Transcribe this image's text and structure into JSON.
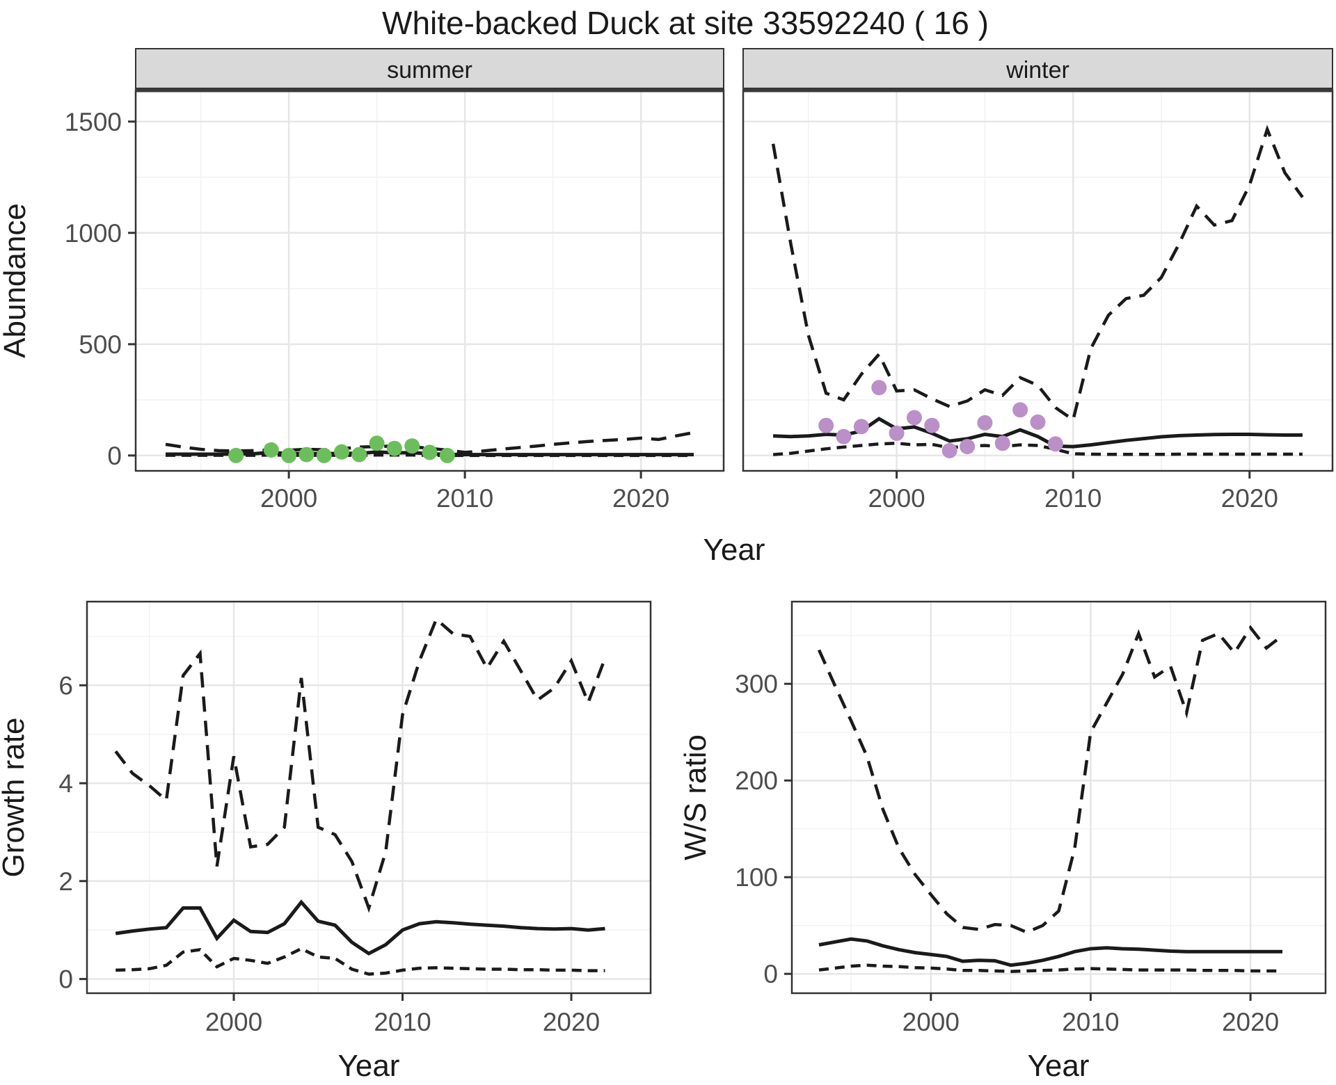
{
  "colors": {
    "point_summer": "#6CBE5C",
    "point_winter": "#BB8FC7",
    "line": "#1A1A1A",
    "strip_bg": "#D9D9D9",
    "strip_text": "#1A1A1A",
    "grid_major": "#E6E6E6",
    "grid_minor": "#F2F2F2",
    "axis_text": "#4D4D4D",
    "panel_border": "#333333",
    "strip_underline": "#3A3A3A"
  },
  "chart_data": {
    "type": "line",
    "title": "White-backed Duck at site 33592240 ( 16 )",
    "xlabel": "Year",
    "xlim": [
      1991.3,
      2024.7
    ],
    "x_ticks": [
      2000,
      2010,
      2020
    ],
    "grid": true,
    "legend_position": "none",
    "panels": [
      {
        "id": "abundance_summer",
        "strip_label": "summer",
        "ylabel": "Abundance",
        "xlabel": "Year",
        "ylim": [
          -69,
          1640
        ],
        "yticks": [
          0,
          500,
          1000,
          1500
        ],
        "show_yticklabels": true,
        "lines": [
          {
            "name": "lower_95",
            "dash": "short",
            "year_start": 1993,
            "values": [
              1,
              1,
              1,
              1,
              1,
              1,
              2,
              1,
              1,
              1,
              1,
              1,
              2,
              2,
              2,
              1,
              0,
              0,
              0,
              0,
              0,
              0,
              0,
              0,
              0,
              0,
              0,
              0,
              0,
              0,
              0
            ]
          },
          {
            "name": "upper_95",
            "dash": "long",
            "year_start": 1993,
            "values": [
              50,
              38,
              28,
              22,
              20,
              22,
              25,
              24,
              28,
              26,
              30,
              38,
              40,
              43,
              40,
              32,
              24,
              14,
              20,
              28,
              35,
              42,
              50,
              57,
              63,
              68,
              72,
              78,
              72,
              88,
              103
            ]
          },
          {
            "name": "median",
            "dash": "solid",
            "year_start": 1993,
            "values": [
              6,
              6,
              6,
              6,
              7,
              8,
              14,
              8,
              9,
              8,
              10,
              9,
              16,
              12,
              13,
              8,
              5,
              4,
              4,
              4,
              4,
              4,
              4,
              4,
              4,
              4,
              4,
              4,
              4,
              4,
              4
            ]
          }
        ],
        "points": {
          "name": "observed_summer_counts",
          "color": "#6CBE5C",
          "years": [
            1997,
            1999,
            2000,
            2001,
            2002,
            2003,
            2004,
            2005,
            2006,
            2007,
            2008,
            2009
          ],
          "values": [
            0,
            25,
            0,
            4,
            0,
            16,
            4,
            55,
            32,
            43,
            14,
            0
          ]
        }
      },
      {
        "id": "abundance_winter",
        "strip_label": "winter",
        "ylabel": "Abundance",
        "xlabel": "Year",
        "ylim": [
          -69,
          1640
        ],
        "yticks": [
          0,
          500,
          1000,
          1500
        ],
        "show_yticklabels": false,
        "lines": [
          {
            "name": "lower_95",
            "dash": "short",
            "year_start": 1993,
            "values": [
              4,
              10,
              20,
              30,
              38,
              45,
              52,
              55,
              48,
              50,
              35,
              42,
              45,
              40,
              48,
              45,
              28,
              8,
              6,
              5,
              5,
              5,
              5,
              6,
              6,
              6,
              6,
              6,
              6,
              6,
              6
            ]
          },
          {
            "name": "upper_95",
            "dash": "long",
            "year_start": 1993,
            "values": [
              1400,
              950,
              540,
              280,
              250,
              365,
              455,
              290,
              295,
              255,
              220,
              245,
              295,
              270,
              350,
              315,
              215,
              160,
              480,
              630,
              705,
              720,
              800,
              950,
              1120,
              1035,
              1055,
              1215,
              1465,
              1270,
              1160
            ]
          },
          {
            "name": "median",
            "dash": "solid",
            "year_start": 1993,
            "values": [
              88,
              85,
              88,
              95,
              92,
              110,
              165,
              120,
              128,
              100,
              65,
              75,
              95,
              85,
              115,
              85,
              42,
              40,
              48,
              58,
              68,
              76,
              84,
              89,
              92,
              94,
              95,
              95,
              93,
              92,
              92
            ]
          }
        ],
        "points": {
          "name": "observed_winter_counts",
          "color": "#BB8FC7",
          "years": [
            1996,
            1997,
            1998,
            1999,
            2000,
            2001,
            2002,
            2003,
            2004,
            2005,
            2006,
            2007,
            2008,
            2009
          ],
          "values": [
            135,
            85,
            130,
            305,
            100,
            170,
            135,
            22,
            40,
            147,
            55,
            205,
            150,
            52
          ]
        }
      },
      {
        "id": "growth_rate",
        "strip_label": null,
        "ylabel": "Growth rate",
        "xlabel": "Year",
        "ylim": [
          -0.29,
          7.71
        ],
        "yticks": [
          0,
          2,
          4,
          6
        ],
        "show_yticklabels": true,
        "lines": [
          {
            "name": "lower_95",
            "dash": "short",
            "year_start": 1993,
            "values": [
              0.18,
              0.19,
              0.21,
              0.28,
              0.55,
              0.6,
              0.25,
              0.42,
              0.38,
              0.32,
              0.45,
              0.62,
              0.45,
              0.42,
              0.2,
              0.1,
              0.12,
              0.18,
              0.22,
              0.23,
              0.22,
              0.21,
              0.2,
              0.2,
              0.19,
              0.19,
              0.18,
              0.18,
              0.17,
              0.17
            ]
          },
          {
            "name": "upper_95",
            "dash": "long",
            "year_start": 1993,
            "values": [
              4.65,
              4.2,
              3.95,
              3.65,
              6.2,
              6.65,
              2.3,
              4.55,
              2.7,
              2.75,
              3.1,
              6.15,
              3.1,
              2.95,
              2.4,
              1.45,
              2.6,
              5.4,
              6.5,
              7.35,
              7.05,
              7.0,
              6.35,
              6.9,
              6.3,
              5.7,
              5.95,
              6.5,
              5.65,
              6.55
            ]
          },
          {
            "name": "median",
            "dash": "solid",
            "year_start": 1993,
            "values": [
              0.93,
              0.98,
              1.02,
              1.05,
              1.45,
              1.45,
              0.83,
              1.2,
              0.97,
              0.95,
              1.13,
              1.57,
              1.18,
              1.1,
              0.75,
              0.52,
              0.7,
              1.0,
              1.13,
              1.17,
              1.15,
              1.12,
              1.1,
              1.08,
              1.05,
              1.03,
              1.02,
              1.03,
              1.0,
              1.03
            ]
          }
        ],
        "points": null
      },
      {
        "id": "ws_ratio",
        "strip_label": null,
        "ylabel": "W/S ratio",
        "xlabel": "Year",
        "ylim": [
          -20,
          385
        ],
        "yticks": [
          0,
          100,
          200,
          300
        ],
        "show_yticklabels": true,
        "lines": [
          {
            "name": "lower_95",
            "dash": "short",
            "year_start": 1993,
            "values": [
              4,
              6,
              8,
              9,
              8,
              7.5,
              6.5,
              6,
              5,
              3.5,
              3.5,
              3,
              2.5,
              3,
              3.5,
              4,
              5,
              5.5,
              5,
              4.5,
              4,
              4,
              4,
              4,
              3.5,
              3.5,
              3.5,
              3,
              3,
              3
            ]
          },
          {
            "name": "upper_95",
            "dash": "long",
            "year_start": 1993,
            "values": [
              335,
              298,
              262,
              225,
              170,
              130,
              103,
              82,
              62,
              48,
              46,
              51,
              50,
              43,
              50,
              65,
              130,
              250,
              280,
              310,
              352,
              307,
              318,
              270,
              345,
              352,
              332,
              358,
              337,
              350
            ]
          },
          {
            "name": "median",
            "dash": "solid",
            "year_start": 1993,
            "values": [
              30,
              33,
              36,
              34,
              29,
              25,
              22,
              20,
              18,
              13,
              14,
              13.5,
              9,
              11,
              14,
              18,
              23,
              26,
              27,
              26,
              25.5,
              24.5,
              23.5,
              23,
              23,
              23,
              23,
              23,
              23,
              23
            ]
          }
        ],
        "points": null
      }
    ]
  }
}
